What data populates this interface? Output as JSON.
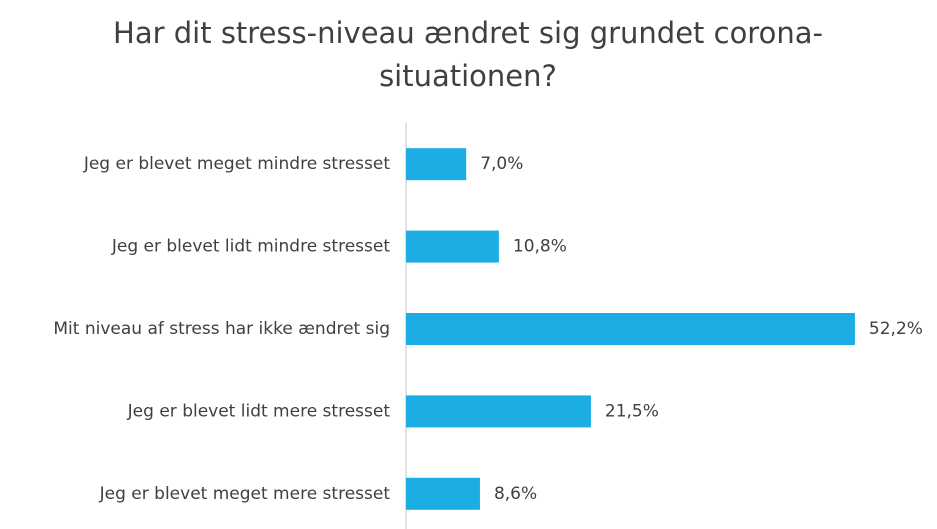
{
  "chart_data": {
    "type": "bar",
    "orientation": "horizontal",
    "title": "Har dit stress-niveau ændret sig grundet corona-situationen?",
    "categories": [
      "Jeg er blevet meget mindre stresset",
      "Jeg er blevet lidt mindre stresset",
      "Mit niveau af stress har ikke ændret sig",
      "Jeg er blevet lidt mere stresset",
      "Jeg er blevet meget mere stresset"
    ],
    "values": [
      7.0,
      10.8,
      52.2,
      21.5,
      8.6
    ],
    "value_labels": [
      "7,0%",
      "10,8%",
      "52,2%",
      "21,5%",
      "8,6%"
    ],
    "color": "#1cade4",
    "xlim": [
      0,
      60
    ]
  }
}
